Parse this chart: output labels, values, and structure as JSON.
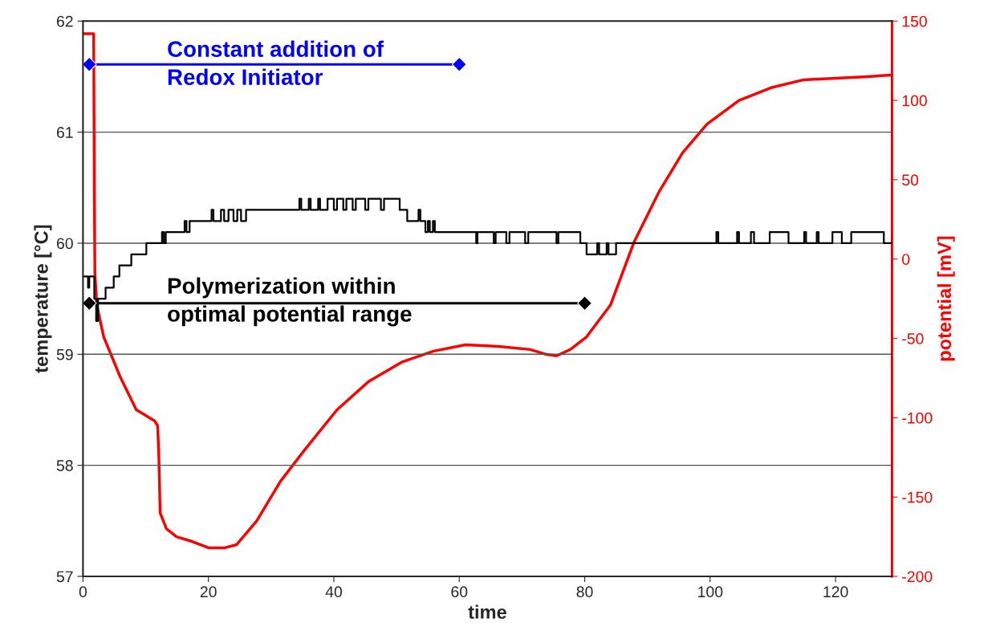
{
  "chart_data": {
    "type": "line",
    "xlabel": "time",
    "ylabel": "temperature [°C]",
    "y2label": "potential [mV]",
    "xlim": [
      0,
      129
    ],
    "xticks": [
      0,
      20,
      40,
      60,
      80,
      100,
      120
    ],
    "ylim": [
      57,
      62
    ],
    "yticks": [
      57,
      58,
      59,
      60,
      61,
      62
    ],
    "y2lim": [
      -200,
      150
    ],
    "y2ticks": [
      -200,
      -150,
      -100,
      -50,
      0,
      50,
      100,
      150
    ],
    "grid": "y",
    "legend": false,
    "series": [
      {
        "type": "step",
        "color": "#000000",
        "x": [
          0,
          0.8,
          1.0,
          1.8,
          2.1,
          2.4,
          3.6,
          4.9,
          5.8,
          7.7,
          10.1,
          12.6,
          12.9,
          13.2,
          16.2,
          16.5,
          17.0,
          20.5,
          20.8,
          22.0,
          22.5,
          23.2,
          24.0,
          24.6,
          25.2,
          26.0,
          34.5,
          34.8,
          36.0,
          36.3,
          37.5,
          37.8,
          39.0,
          40.0,
          40.5,
          41.5,
          42.0,
          43.0,
          43.5,
          45.0,
          45.5,
          47.5,
          48.0,
          50.5,
          51.7,
          53.5,
          53.8,
          54.6,
          55.0,
          55.3,
          55.8,
          56.1,
          62.7,
          62.9,
          65.5,
          65.8,
          67.5,
          68.0,
          70.5,
          71.0,
          75.5,
          75.8,
          79.3,
          80.3,
          82.0,
          82.3,
          83.5,
          83.8,
          85.0,
          101.0,
          101.3,
          104.3,
          104.6,
          106.5,
          107.0,
          109.5,
          112.5,
          115.0,
          115.3,
          117.0,
          117.3,
          119.5,
          121.0,
          122.5,
          127.7,
          129
        ],
        "values": [
          59.7,
          59.6,
          59.7,
          59.5,
          59.3,
          59.5,
          59.6,
          59.7,
          59.8,
          59.9,
          60.0,
          60.1,
          60.0,
          60.1,
          60.2,
          60.1,
          60.2,
          60.3,
          60.2,
          60.3,
          60.2,
          60.3,
          60.2,
          60.3,
          60.2,
          60.3,
          60.4,
          60.3,
          60.4,
          60.3,
          60.4,
          60.3,
          60.4,
          60.3,
          60.4,
          60.3,
          60.4,
          60.3,
          60.4,
          60.3,
          60.4,
          60.3,
          60.4,
          60.3,
          60.2,
          60.3,
          60.2,
          60.1,
          60.2,
          60.1,
          60.2,
          60.1,
          60.0,
          60.1,
          60.0,
          60.1,
          60.0,
          60.1,
          60.0,
          60.1,
          60.0,
          60.1,
          60.0,
          59.9,
          60.0,
          59.9,
          60.0,
          59.9,
          60.0,
          60.1,
          60.0,
          60.1,
          60.0,
          60.1,
          60.0,
          60.1,
          60.0,
          60.1,
          60.0,
          60.1,
          60.0,
          60.1,
          60.0,
          60.1,
          60.0,
          60.0
        ]
      },
      {
        "type": "line",
        "axis": "y2",
        "color": "#ff0000",
        "x": [
          0,
          1.7,
          1.8,
          1.9,
          2.2,
          3.3,
          5.9,
          8.5,
          11.4,
          11.9,
          12.1,
          12.3,
          13.3,
          14.9,
          17.4,
          20.0,
          22.6,
          24.5,
          27.7,
          31.5,
          35.4,
          40.5,
          45.6,
          50.8,
          55.9,
          61.0,
          66.2,
          71.3,
          73.8,
          75.5,
          77.7,
          80.3,
          84.1,
          87.9,
          91.8,
          95.6,
          99.5,
          104.6,
          109.7,
          114.9,
          120.0,
          125.1,
          128.7
        ],
        "values": [
          142,
          142,
          47,
          -9,
          -29,
          -49,
          -74,
          -95,
          -102,
          -105,
          -125,
          -160,
          -170,
          -175,
          -178,
          -182,
          -182,
          -180,
          -165,
          -140,
          -120,
          -95,
          -77,
          -65,
          -58,
          -54,
          -55,
          -57,
          -60,
          -61,
          -57,
          -49,
          -29,
          11,
          42,
          67,
          85,
          100,
          108,
          113,
          114,
          115,
          116
        ]
      },
      {
        "color": "#0000ff",
        "marker": "diamond",
        "x": [
          1,
          60
        ],
        "values": [
          61.61,
          61.61
        ]
      },
      {
        "color": "#000000",
        "marker": "diamond",
        "x": [
          1,
          80
        ],
        "values": [
          59.46,
          59.46
        ]
      }
    ],
    "annotations": [
      "Constant addition of\nRedox Initiator",
      "Polymerization within\noptimal potential range"
    ]
  }
}
